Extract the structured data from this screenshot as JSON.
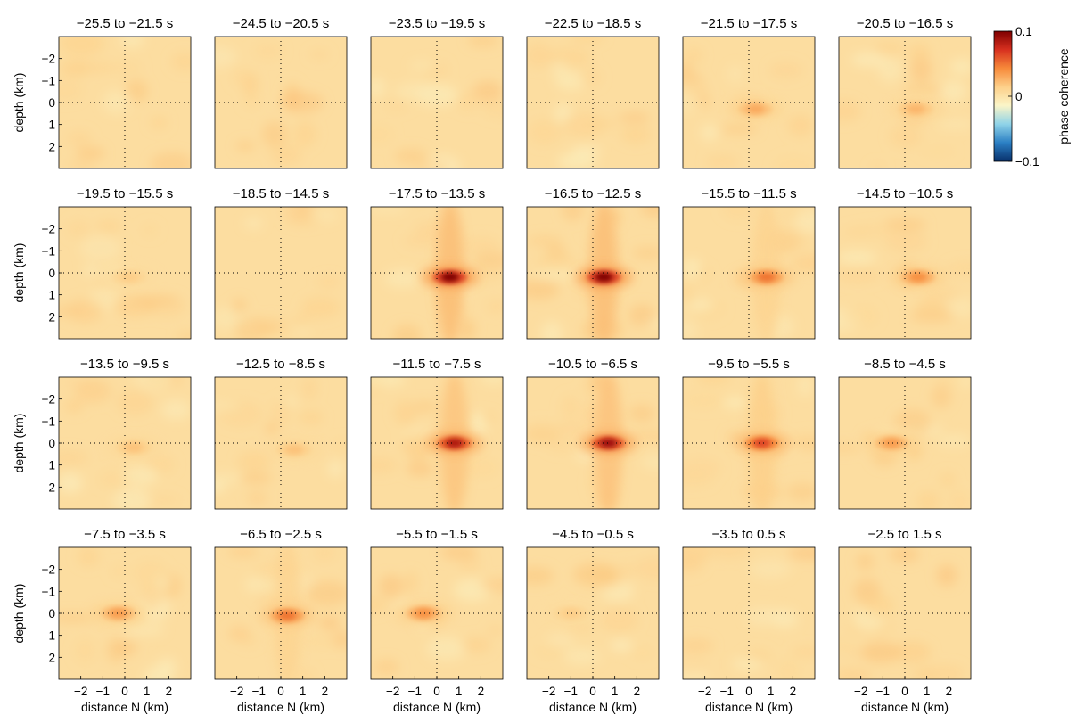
{
  "chart_data": {
    "type": "heatmap",
    "layout": {
      "rows": 4,
      "cols": 6
    },
    "panel_titles": [
      "−25.5 to −21.5 s",
      "−24.5 to −20.5 s",
      "−23.5 to −19.5 s",
      "−22.5 to −18.5 s",
      "−21.5 to −17.5 s",
      "−20.5 to −16.5 s",
      "−19.5 to −15.5 s",
      "−18.5 to −14.5 s",
      "−17.5 to −13.5 s",
      "−16.5 to −12.5 s",
      "−15.5 to −11.5 s",
      "−14.5 to −10.5 s",
      "−13.5 to −9.5 s",
      "−12.5 to −8.5 s",
      "−11.5 to −7.5 s",
      "−10.5 to −6.5 s",
      "−9.5 to −5.5 s",
      "−8.5 to −4.5 s",
      "−7.5 to −3.5 s",
      "−6.5 to −2.5 s",
      "−5.5 to −1.5 s",
      "−4.5 to −0.5 s",
      "−3.5 to 0.5 s",
      "−2.5 to 1.5 s"
    ],
    "xlabel": "distance N (km)",
    "ylabel": "depth (km)",
    "xlim": [
      -3,
      3
    ],
    "ylim": [
      3,
      -3
    ],
    "x_ticks": [
      -2,
      -1,
      0,
      1,
      2
    ],
    "x_tick_labels": [
      "−2",
      "−1",
      "0",
      "1",
      "2"
    ],
    "y_ticks": [
      -2,
      -1,
      0,
      1,
      2
    ],
    "y_tick_labels": [
      "−2",
      "−1",
      "0",
      "1",
      "2"
    ],
    "reference_lines": {
      "x": 0,
      "y": 0,
      "style": "dotted"
    },
    "colorbar": {
      "label": "phase coherence",
      "min": -0.1,
      "max": 0.1,
      "ticks": [
        0.1,
        0,
        -0.1
      ],
      "tick_labels": [
        "0.1",
        "0",
        "−0.1"
      ],
      "colors": [
        "#08306b",
        "#2b7fc4",
        "#8fd3e8",
        "#fbf5c8",
        "#fdd08a",
        "#f78a3a",
        "#d7301f",
        "#7f0000"
      ]
    },
    "peaks": [
      {
        "panel": 4,
        "x": 0.3,
        "depth": 0.3,
        "value": 0.03
      },
      {
        "panel": 5,
        "x": 0.5,
        "depth": 0.3,
        "value": 0.025
      },
      {
        "panel": 6,
        "x": 0.2,
        "depth": 0.2,
        "value": 0.015
      },
      {
        "panel": 8,
        "x": 0.6,
        "depth": 0.2,
        "value": 0.1
      },
      {
        "panel": 9,
        "x": 0.5,
        "depth": 0.2,
        "value": 0.1
      },
      {
        "panel": 10,
        "x": 0.8,
        "depth": 0.2,
        "value": 0.05
      },
      {
        "panel": 11,
        "x": 0.6,
        "depth": 0.2,
        "value": 0.04
      },
      {
        "panel": 12,
        "x": 0.4,
        "depth": 0.2,
        "value": 0.02
      },
      {
        "panel": 13,
        "x": 0.6,
        "depth": 0.3,
        "value": 0.02
      },
      {
        "panel": 14,
        "x": 0.8,
        "depth": 0.0,
        "value": 0.085
      },
      {
        "panel": 15,
        "x": 0.7,
        "depth": 0.0,
        "value": 0.09
      },
      {
        "panel": 16,
        "x": 0.6,
        "depth": 0.0,
        "value": 0.065
      },
      {
        "panel": 17,
        "x": -0.6,
        "depth": 0.0,
        "value": 0.035
      },
      {
        "panel": 18,
        "x": -0.3,
        "depth": 0.0,
        "value": 0.035
      },
      {
        "panel": 19,
        "x": 0.3,
        "depth": 0.1,
        "value": 0.05
      },
      {
        "panel": 20,
        "x": -0.6,
        "depth": 0.0,
        "value": 0.04
      },
      {
        "panel": 21,
        "x": -1.0,
        "depth": 0.0,
        "value": 0.015
      }
    ]
  }
}
